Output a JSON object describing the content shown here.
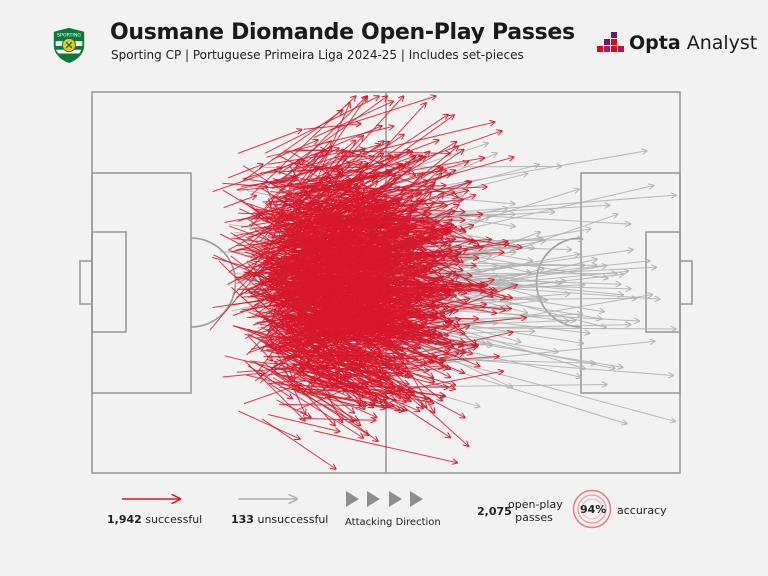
{
  "header": {
    "title": "Ousmane Diomande Open-Play Passes",
    "subtitle": "Sporting CP | Portuguese Primeira Liga 2024-25 | Includes set-pieces",
    "crest_alt": "Sporting CP crest",
    "brand_strong": "Opta",
    "brand_light": "Analyst"
  },
  "colors": {
    "successful": "#d7182a",
    "unsuccessful": "#b0b0b0",
    "pitch_lines": "#9a9a9a",
    "accent": "#e30613",
    "background": "#f2f2f2"
  },
  "chart_data": {
    "type": "pass map",
    "attacking_direction": "left-to-right",
    "total_passes": 2075,
    "series": [
      {
        "name": "successful",
        "count": 1942,
        "color": "#d7182a"
      },
      {
        "name": "unsuccessful",
        "count": 133,
        "color": "#b0b0b0"
      }
    ],
    "accuracy_percent": 94
  },
  "legend": {
    "successful_count": "1,942",
    "successful_label": "successful",
    "unsuccessful_count": "133",
    "unsuccessful_label": "unsuccessful",
    "direction_label": "Attacking Direction",
    "total_count": "2,075",
    "total_label_line1": "open-play",
    "total_label_line2": "passes",
    "accuracy_value": "94%",
    "accuracy_label": "accuracy"
  }
}
